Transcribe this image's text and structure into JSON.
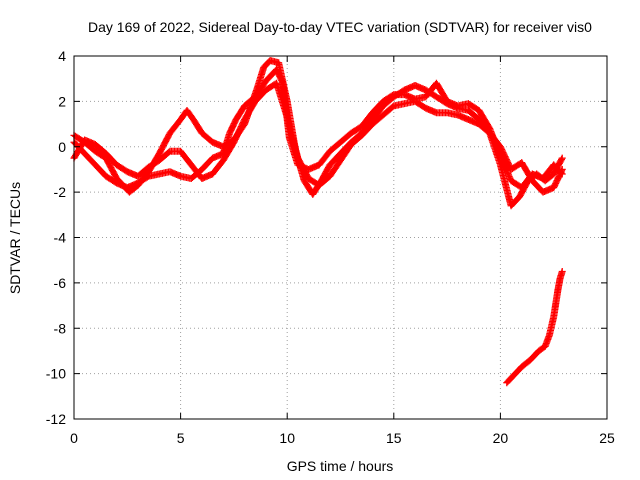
{
  "chart_data": {
    "type": "scatter",
    "title": "Day 169 of 2022, Sidereal Day-to-day VTEC variation (SDTVAR) for receiver vis0",
    "xlabel": "GPS time / hours",
    "ylabel": "SDTVAR / TECUs",
    "xlim": [
      0,
      25
    ],
    "ylim": [
      -12,
      4
    ],
    "xticks": [
      0,
      5,
      10,
      15,
      20,
      25
    ],
    "yticks": [
      -12,
      -10,
      -8,
      -6,
      -4,
      -2,
      0,
      2,
      4
    ],
    "grid": true,
    "marker": "plus",
    "color": "#ff0000",
    "series": [
      {
        "points": [
          [
            0,
            0.5
          ],
          [
            0.5,
            0.2
          ],
          [
            1,
            -0.2
          ],
          [
            1.5,
            -0.5
          ],
          [
            2,
            -1.4
          ],
          [
            2.6,
            -2.0
          ],
          [
            3,
            -1.7
          ],
          [
            3.5,
            -1.1
          ],
          [
            4,
            -0.3
          ],
          [
            4.5,
            0.6
          ],
          [
            5,
            1.2
          ],
          [
            5.3,
            1.6
          ],
          [
            5.6,
            1.2
          ],
          [
            6,
            0.6
          ],
          [
            6.5,
            0.2
          ],
          [
            7,
            0.0
          ],
          [
            7.5,
            0.3
          ],
          [
            8,
            1.0
          ],
          [
            8.3,
            1.8
          ],
          [
            8.6,
            2.6
          ],
          [
            8.9,
            3.5
          ],
          [
            9.2,
            3.8
          ],
          [
            9.6,
            3.7
          ],
          [
            10,
            2.0
          ],
          [
            10.4,
            -0.2
          ],
          [
            10.8,
            -1.5
          ],
          [
            11.2,
            -2.1
          ],
          [
            11.6,
            -1.5
          ],
          [
            12,
            -0.8
          ],
          [
            12.5,
            -0.3
          ],
          [
            13,
            0.2
          ],
          [
            13.5,
            0.6
          ],
          [
            14,
            1.2
          ],
          [
            14.5,
            1.8
          ],
          [
            15,
            2.2
          ],
          [
            15.5,
            2.5
          ],
          [
            16,
            2.7
          ],
          [
            16.5,
            2.5
          ],
          [
            17,
            2.2
          ],
          [
            17.5,
            1.9
          ],
          [
            18,
            1.7
          ],
          [
            18.5,
            1.6
          ],
          [
            19,
            1.2
          ],
          [
            19.5,
            0.6
          ],
          [
            20,
            -0.8
          ],
          [
            20.5,
            -2.6
          ],
          [
            20.9,
            -2.2
          ],
          [
            21.3,
            -1.5
          ],
          [
            21.7,
            -1.2
          ],
          [
            22.1,
            -1.5
          ],
          [
            22.5,
            -1.2
          ],
          [
            22.9,
            -0.5
          ]
        ]
      },
      {
        "points": [
          [
            0,
            -0.5
          ],
          [
            0.5,
            0.3
          ],
          [
            1,
            0.1
          ],
          [
            1.5,
            -0.3
          ],
          [
            2,
            -0.8
          ],
          [
            2.5,
            -1.1
          ],
          [
            3,
            -1.3
          ],
          [
            3.5,
            -0.9
          ],
          [
            4,
            -0.6
          ],
          [
            4.5,
            -0.2
          ],
          [
            5,
            -0.2
          ],
          [
            5.5,
            -0.8
          ],
          [
            6,
            -1.4
          ],
          [
            6.5,
            -1.2
          ],
          [
            7,
            -0.6
          ],
          [
            7.5,
            0.2
          ],
          [
            8,
            1.2
          ],
          [
            8.5,
            2.0
          ],
          [
            9,
            2.5
          ],
          [
            9.5,
            2.8
          ],
          [
            10,
            1.3
          ],
          [
            10.5,
            -0.5
          ],
          [
            11,
            -1.4
          ],
          [
            11.5,
            -1.7
          ],
          [
            12,
            -1.3
          ],
          [
            12.5,
            -0.6
          ],
          [
            13,
            0.1
          ],
          [
            13.5,
            0.5
          ],
          [
            14,
            1.0
          ],
          [
            14.5,
            1.4
          ],
          [
            15,
            1.8
          ],
          [
            15.5,
            1.9
          ],
          [
            16,
            2.0
          ],
          [
            16.5,
            1.7
          ],
          [
            17,
            1.5
          ],
          [
            17.5,
            1.5
          ],
          [
            18,
            1.4
          ],
          [
            18.5,
            1.2
          ],
          [
            19,
            1.0
          ],
          [
            19.5,
            0.6
          ],
          [
            20,
            0.0
          ],
          [
            20.5,
            -1.0
          ],
          [
            21,
            -0.7
          ],
          [
            21.5,
            -1.5
          ],
          [
            22,
            -2.0
          ],
          [
            22.5,
            -1.8
          ],
          [
            22.9,
            -1.0
          ]
        ]
      },
      {
        "points": [
          [
            0,
            0.2
          ],
          [
            0.5,
            -0.3
          ],
          [
            1,
            -0.8
          ],
          [
            1.5,
            -1.3
          ],
          [
            2,
            -1.6
          ],
          [
            2.5,
            -1.8
          ],
          [
            3,
            -1.6
          ],
          [
            3.5,
            -1.3
          ],
          [
            4,
            -1.2
          ],
          [
            4.5,
            -1.1
          ],
          [
            5,
            -1.3
          ],
          [
            5.5,
            -1.4
          ],
          [
            6,
            -1.0
          ],
          [
            6.5,
            -0.5
          ],
          [
            7,
            -0.3
          ],
          [
            7.3,
            0.6
          ],
          [
            7.6,
            1.2
          ],
          [
            8,
            1.8
          ],
          [
            8.5,
            2.2
          ],
          [
            9,
            2.9
          ],
          [
            9.5,
            3.4
          ],
          [
            9.8,
            2.8
          ],
          [
            10.1,
            0.4
          ],
          [
            10.5,
            -0.8
          ],
          [
            11,
            -1.0
          ],
          [
            11.5,
            -0.8
          ],
          [
            12,
            -0.2
          ],
          [
            12.5,
            0.2
          ],
          [
            13,
            0.6
          ],
          [
            13.5,
            0.9
          ],
          [
            14,
            1.5
          ],
          [
            14.5,
            2.0
          ],
          [
            15,
            2.3
          ],
          [
            15.5,
            2.3
          ],
          [
            16,
            2.1
          ],
          [
            16.5,
            2.2
          ],
          [
            17,
            2.8
          ],
          [
            17.5,
            2.0
          ],
          [
            18,
            1.8
          ],
          [
            18.5,
            1.9
          ],
          [
            19,
            1.6
          ],
          [
            19.5,
            0.8
          ],
          [
            20,
            -0.4
          ],
          [
            20.5,
            -1.5
          ],
          [
            21,
            -1.8
          ],
          [
            21.5,
            -1.2
          ],
          [
            22,
            -1.4
          ],
          [
            22.5,
            -0.8
          ],
          [
            22.9,
            -1.2
          ]
        ]
      },
      {
        "points": [
          [
            20.3,
            -10.4
          ],
          [
            20.6,
            -10.1
          ],
          [
            21.0,
            -9.7
          ],
          [
            21.4,
            -9.4
          ],
          [
            21.8,
            -9.0
          ],
          [
            22.1,
            -8.8
          ],
          [
            22.3,
            -8.3
          ],
          [
            22.5,
            -7.5
          ],
          [
            22.6,
            -6.9
          ],
          [
            22.7,
            -6.3
          ],
          [
            22.8,
            -5.8
          ],
          [
            22.9,
            -5.5
          ]
        ]
      }
    ]
  }
}
